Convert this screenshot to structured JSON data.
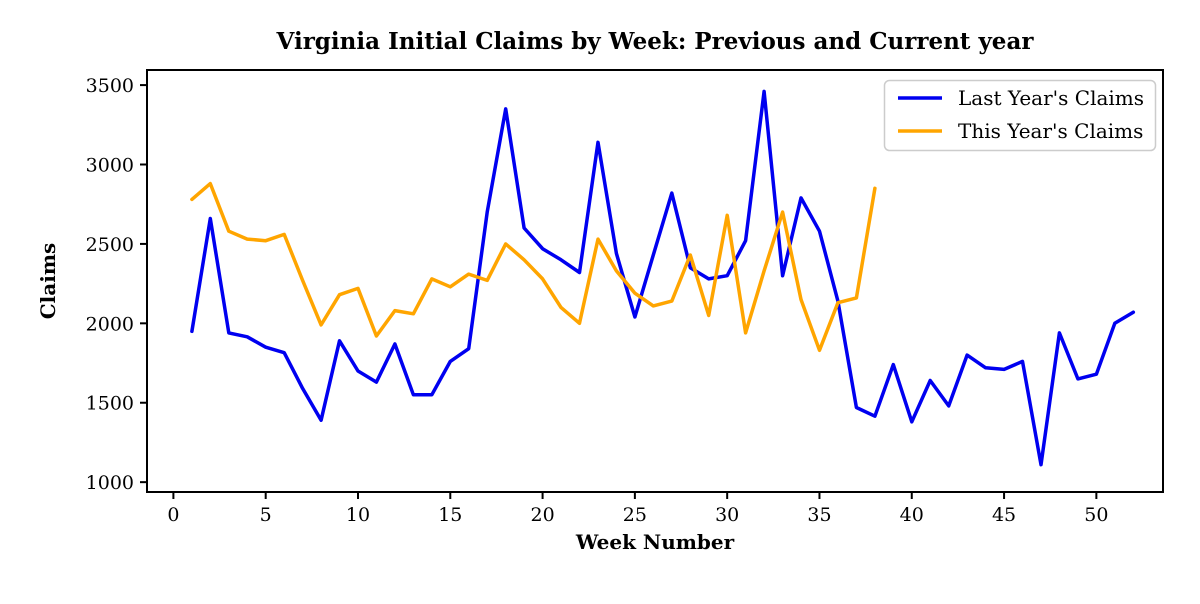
{
  "chart_data": {
    "type": "line",
    "title": "Virginia Initial Claims by Week: Previous and Current year",
    "xlabel": "Week Number",
    "ylabel": "Claims",
    "x_ticks": [
      0,
      5,
      10,
      15,
      20,
      25,
      30,
      35,
      40,
      45,
      50
    ],
    "y_ticks": [
      1000,
      1500,
      2000,
      2500,
      3000,
      3500
    ],
    "xlim": [
      -1.43,
      53.61
    ],
    "ylim": [
      938,
      3595
    ],
    "grid": false,
    "legend_position": "upper right",
    "background_color": "#ffffff",
    "axis_color": "#000000",
    "series": [
      {
        "name": "Last Year's Claims",
        "color": "#0000f0",
        "weeks": [
          1,
          2,
          3,
          4,
          5,
          6,
          7,
          8,
          9,
          10,
          11,
          12,
          13,
          14,
          15,
          16,
          17,
          18,
          19,
          20,
          21,
          22,
          23,
          24,
          25,
          26,
          27,
          28,
          29,
          30,
          31,
          32,
          33,
          34,
          35,
          36,
          37,
          38,
          39,
          40,
          41,
          42,
          43,
          44,
          45,
          46,
          47,
          48,
          49,
          50,
          51,
          52
        ],
        "values": [
          1950,
          2660,
          1940,
          1915,
          1850,
          1815,
          1590,
          1390,
          1890,
          1700,
          1630,
          1870,
          1550,
          1550,
          1760,
          1840,
          2700,
          3350,
          2600,
          2470,
          2400,
          2320,
          3140,
          2440,
          2040,
          2430,
          2820,
          2350,
          2280,
          2300,
          2520,
          3460,
          2300,
          2790,
          2580,
          2140,
          1470,
          1415,
          1740,
          1380,
          1640,
          1480,
          1800,
          1720,
          1710,
          1760,
          1110,
          1940,
          1650,
          1680,
          2000,
          2070
        ]
      },
      {
        "name": "This Year's Claims",
        "color": "#ffa500",
        "weeks": [
          1,
          2,
          3,
          4,
          5,
          6,
          7,
          8,
          9,
          10,
          11,
          12,
          13,
          14,
          15,
          16,
          17,
          18,
          19,
          20,
          21,
          22,
          23,
          24,
          25,
          26,
          27,
          28,
          29,
          30,
          31,
          32,
          33,
          34,
          35,
          36,
          37,
          38
        ],
        "values": [
          2780,
          2880,
          2580,
          2530,
          2520,
          2560,
          2270,
          1990,
          2180,
          2220,
          1920,
          2080,
          2060,
          2280,
          2230,
          2310,
          2270,
          2500,
          2400,
          2280,
          2100,
          2000,
          2530,
          2330,
          2190,
          2110,
          2140,
          2430,
          2050,
          2680,
          1940,
          2330,
          2700,
          2150,
          1830,
          2130,
          2160,
          2850
        ]
      }
    ]
  },
  "legend": {
    "entries": [
      {
        "label": "Last Year's Claims",
        "color": "#0000f0"
      },
      {
        "label": "This Year's Claims",
        "color": "#ffa500"
      }
    ]
  }
}
